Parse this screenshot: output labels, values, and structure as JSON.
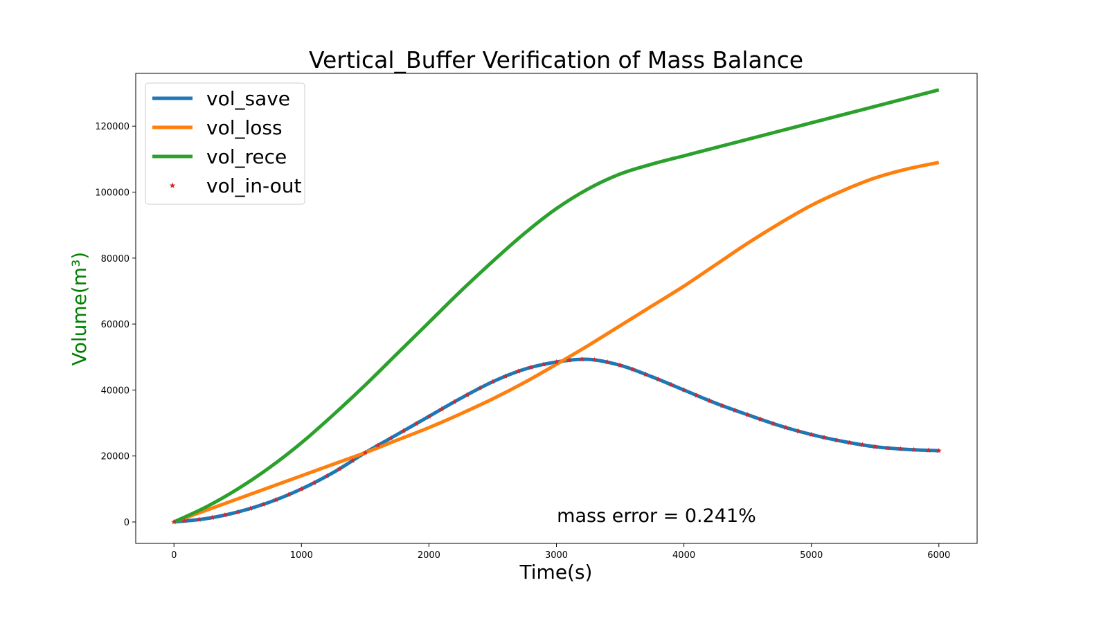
{
  "chart_data": {
    "type": "line",
    "title": "Vertical_Buffer Verification of Mass Balance",
    "xlabel": "Time(s)",
    "ylabel": "Volume(m³)",
    "ylabel_color": "#008000",
    "xlim": [
      -300,
      6300
    ],
    "ylim": [
      -6500,
      136000
    ],
    "xticks": [
      0,
      1000,
      2000,
      3000,
      4000,
      5000,
      6000
    ],
    "xtick_labels": [
      "0",
      "1000",
      "2000",
      "3000",
      "4000",
      "5000",
      "6000"
    ],
    "yticks": [
      0,
      20000,
      40000,
      60000,
      80000,
      100000,
      120000
    ],
    "ytick_labels": [
      "0",
      "20000",
      "40000",
      "60000",
      "80000",
      "100000",
      "120000"
    ],
    "grid": false,
    "legend_position": "top-left",
    "annotation": "mass error = 0.241%",
    "series": [
      {
        "name": "vol_save",
        "style": "line",
        "color": "#1f77b4",
        "x": [
          0,
          250,
          500,
          750,
          1000,
          1250,
          1500,
          1750,
          2000,
          2250,
          2500,
          2750,
          3000,
          3250,
          3500,
          3750,
          4000,
          4250,
          4500,
          4750,
          5000,
          5250,
          5500,
          5750,
          6000
        ],
        "values": [
          0,
          1000,
          3000,
          6000,
          10000,
          15000,
          21000,
          26500,
          32000,
          37500,
          42500,
          46300,
          48500,
          49300,
          47500,
          44000,
          40000,
          36000,
          32500,
          29200,
          26500,
          24400,
          22800,
          22000,
          21600
        ]
      },
      {
        "name": "vol_loss",
        "style": "line",
        "color": "#ff7f0e",
        "x": [
          0,
          250,
          500,
          750,
          1000,
          1250,
          1500,
          1750,
          2000,
          2250,
          2500,
          2750,
          3000,
          3250,
          3500,
          3750,
          4000,
          4250,
          4500,
          4750,
          5000,
          5250,
          5500,
          5750,
          6000
        ],
        "values": [
          0,
          3500,
          7000,
          10500,
          14000,
          17500,
          21000,
          24800,
          28600,
          32800,
          37300,
          42300,
          47800,
          53500,
          59500,
          65500,
          71500,
          78000,
          84500,
          90500,
          96000,
          100500,
          104300,
          107000,
          109000
        ]
      },
      {
        "name": "vol_rece",
        "style": "line",
        "color": "#2ca02c",
        "x": [
          0,
          250,
          500,
          750,
          1000,
          1250,
          1500,
          1750,
          2000,
          2250,
          2500,
          2750,
          3000,
          3250,
          3500,
          3750,
          4000,
          4250,
          4500,
          4750,
          5000,
          5250,
          5500,
          5750,
          6000
        ],
        "values": [
          0,
          4500,
          10000,
          16500,
          24000,
          32500,
          41500,
          51000,
          60500,
          70000,
          79000,
          87500,
          95000,
          101000,
          105500,
          108500,
          111000,
          113500,
          116000,
          118500,
          121000,
          123500,
          126000,
          128500,
          131000
        ]
      },
      {
        "name": "vol_in-out",
        "style": "markers",
        "marker": "star",
        "color": "#d62728",
        "x": [
          0,
          250,
          500,
          750,
          1000,
          1250,
          1500,
          1750,
          2000,
          2250,
          2500,
          2750,
          3000,
          3250,
          3500,
          3750,
          4000,
          4250,
          4500,
          4750,
          5000,
          5250,
          5500,
          5750,
          6000
        ],
        "values": [
          0,
          1000,
          3000,
          6000,
          10000,
          15000,
          21000,
          26500,
          32000,
          37500,
          42500,
          46300,
          48500,
          49300,
          47500,
          44000,
          40000,
          36000,
          32500,
          29200,
          26500,
          24400,
          22800,
          22000,
          21600
        ]
      }
    ]
  }
}
